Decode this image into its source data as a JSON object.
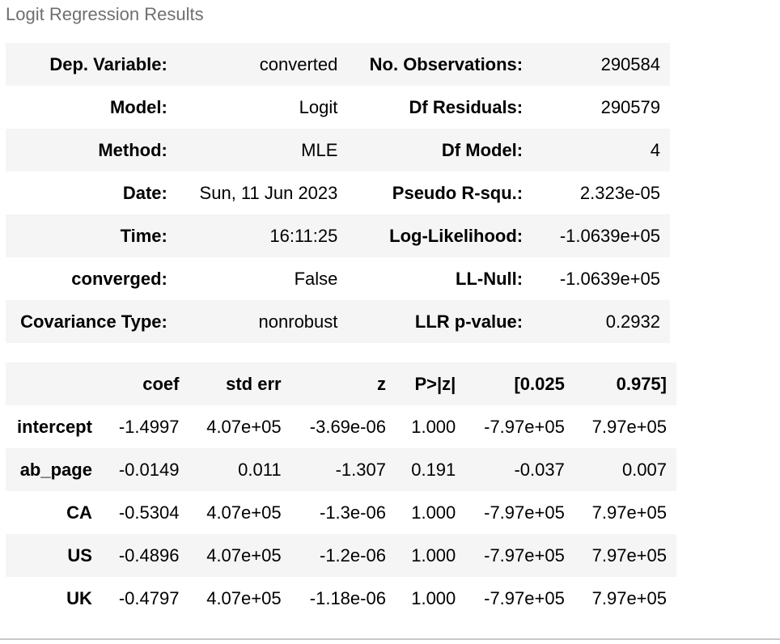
{
  "caption": "Logit Regression Results",
  "summary": {
    "rows": [
      {
        "l1": "Dep. Variable:",
        "v1": "converted",
        "l2": "No. Observations:",
        "v2": "290584"
      },
      {
        "l1": "Model:",
        "v1": "Logit",
        "l2": "Df Residuals:",
        "v2": "290579"
      },
      {
        "l1": "Method:",
        "v1": "MLE",
        "l2": "Df Model:",
        "v2": "4"
      },
      {
        "l1": "Date:",
        "v1": "Sun, 11 Jun 2023",
        "l2": "Pseudo R-squ.:",
        "v2": "2.323e-05"
      },
      {
        "l1": "Time:",
        "v1": "16:11:25",
        "l2": "Log-Likelihood:",
        "v2": "-1.0639e+05"
      },
      {
        "l1": "converged:",
        "v1": "False",
        "l2": "LL-Null:",
        "v2": "-1.0639e+05"
      },
      {
        "l1": "Covariance Type:",
        "v1": "nonrobust",
        "l2": "LLR p-value:",
        "v2": "0.2932"
      }
    ]
  },
  "coefficients": {
    "headers": [
      "",
      "coef",
      "std err",
      "z",
      "P>|z|",
      "[0.025",
      "0.975]"
    ],
    "rows": [
      {
        "name": "intercept",
        "coef": "-1.4997",
        "std_err": "4.07e+05",
        "z": "-3.69e-06",
        "p": "1.000",
        "lo": "-7.97e+05",
        "hi": "7.97e+05"
      },
      {
        "name": "ab_page",
        "coef": "-0.0149",
        "std_err": "0.011",
        "z": "-1.307",
        "p": "0.191",
        "lo": "-0.037",
        "hi": "0.007"
      },
      {
        "name": "CA",
        "coef": "-0.5304",
        "std_err": "4.07e+05",
        "z": "-1.3e-06",
        "p": "1.000",
        "lo": "-7.97e+05",
        "hi": "7.97e+05"
      },
      {
        "name": "US",
        "coef": "-0.4896",
        "std_err": "4.07e+05",
        "z": "-1.2e-06",
        "p": "1.000",
        "lo": "-7.97e+05",
        "hi": "7.97e+05"
      },
      {
        "name": "UK",
        "coef": "-0.4797",
        "std_err": "4.07e+05",
        "z": "-1.18e-06",
        "p": "1.000",
        "lo": "-7.97e+05",
        "hi": "7.97e+05"
      }
    ]
  }
}
